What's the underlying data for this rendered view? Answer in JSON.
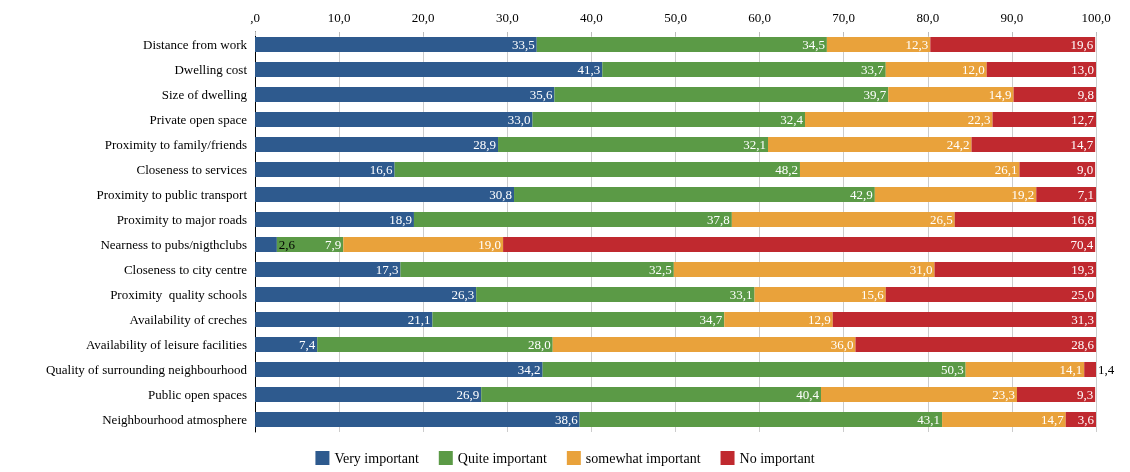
{
  "chart_data": {
    "type": "bar",
    "orientation": "horizontal",
    "stacked": true,
    "categories": [
      "Distance from work",
      "Dwelling cost",
      "Size of dwelling",
      "Private open space",
      "Proximity to family/friends",
      "Closeness to services",
      "Proximity to public transport",
      "Proximity to major roads",
      "Nearness to pubs/nigthclubs",
      "Closeness to city centre",
      "Proximity  quality schools",
      "Availability of creches",
      "Availability of leisure facilities",
      "Quality of surrounding neighbourhood",
      "Public open spaces",
      "Neighbourhood atmosphere"
    ],
    "series": [
      {
        "name": "Very important",
        "color": "#2e5a8e",
        "values": [
          33.5,
          41.3,
          35.6,
          33.0,
          28.9,
          16.6,
          30.8,
          18.9,
          2.6,
          17.3,
          26.3,
          21.1,
          7.4,
          34.2,
          26.9,
          38.6
        ],
        "value_labels": [
          "33,5",
          "41,3",
          "35,6",
          "33,0",
          "28,9",
          "16,6",
          "30,8",
          "18,9",
          "2,6",
          "17,3",
          "26,3",
          "21,1",
          "7,4",
          "34,2",
          "26,9",
          "38,6"
        ]
      },
      {
        "name": "Quite important",
        "color": "#5b9a46",
        "values": [
          34.5,
          33.7,
          39.7,
          32.4,
          32.1,
          48.2,
          42.9,
          37.8,
          7.9,
          32.5,
          33.1,
          34.7,
          28.0,
          50.3,
          40.4,
          43.1
        ],
        "value_labels": [
          "34,5",
          "33,7",
          "39,7",
          "32,4",
          "32,1",
          "48,2",
          "42,9",
          "37,8",
          "7,9",
          "32,5",
          "33,1",
          "34,7",
          "28,0",
          "50,3",
          "40,4",
          "43,1"
        ]
      },
      {
        "name": "somewhat important",
        "color": "#e9a23b",
        "values": [
          12.3,
          12.0,
          14.9,
          22.3,
          24.2,
          26.1,
          19.2,
          26.5,
          19.0,
          31.0,
          15.6,
          12.9,
          36.0,
          14.1,
          23.3,
          14.7
        ],
        "value_labels": [
          "12,3",
          "12,0",
          "14,9",
          "22,3",
          "24,2",
          "26,1",
          "19,2",
          "26,5",
          "19,0",
          "31,0",
          "15,6",
          "12,9",
          "36,0",
          "14,1",
          "23,3",
          "14,7"
        ]
      },
      {
        "name": "No important",
        "color": "#c0292f",
        "values": [
          19.6,
          13.0,
          9.8,
          12.7,
          14.7,
          9.0,
          7.1,
          16.8,
          70.4,
          19.3,
          25.0,
          31.3,
          28.6,
          1.4,
          9.3,
          3.6
        ],
        "value_labels": [
          "19,6",
          "13,0",
          "9,8",
          "12,7",
          "14,7",
          "9,0",
          "7,1",
          "16,8",
          "70,4",
          "19,3",
          "25,0",
          "31,3",
          "28,6",
          "1,4",
          "9,3",
          "3,6"
        ]
      }
    ],
    "xlim": [
      0,
      100
    ],
    "xticks": [
      {
        "value": 0,
        "label": ",0"
      },
      {
        "value": 10,
        "label": "10,0"
      },
      {
        "value": 20,
        "label": "20,0"
      },
      {
        "value": 30,
        "label": "30,0"
      },
      {
        "value": 40,
        "label": "40,0"
      },
      {
        "value": 50,
        "label": "50,0"
      },
      {
        "value": 60,
        "label": "60,0"
      },
      {
        "value": 70,
        "label": "70,0"
      },
      {
        "value": 80,
        "label": "80,0"
      },
      {
        "value": 90,
        "label": "90,0"
      },
      {
        "value": 100,
        "label": "100,0"
      }
    ],
    "grid": "x",
    "legend": "bottom"
  }
}
